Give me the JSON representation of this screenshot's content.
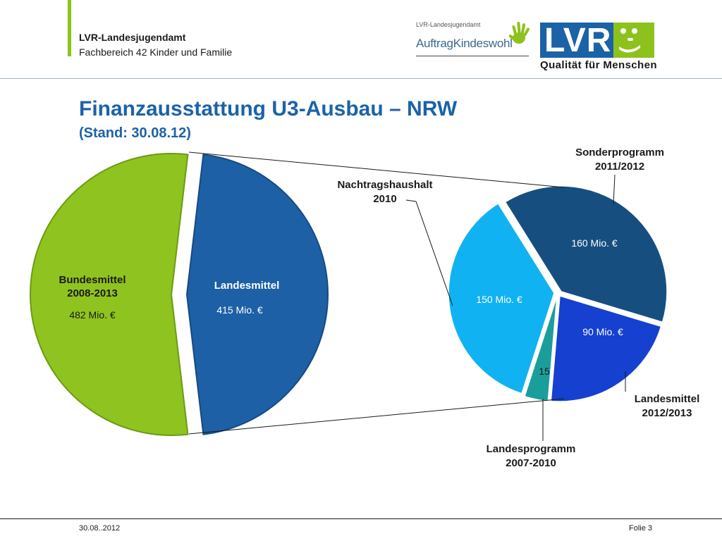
{
  "header": {
    "org_name": "LVR-Landesjugendamt",
    "org_unit": "Fachbereich 42 Kinder und Familie"
  },
  "logos": {
    "awk_org": "LVR-Landesjugendamt",
    "awk_name": "AuftragKindeswohl",
    "lvr_letters": "LVR",
    "lvr_tagline": "Qualität für Menschen"
  },
  "slide": {
    "title": "Finanzausstattung U3-Ausbau – NRW",
    "subtitle": "(Stand: 30.08.12)"
  },
  "footer": {
    "date": "30.08..2012",
    "page": "Folie 3"
  },
  "colors": {
    "title_blue": "#1b62a9",
    "bund_green": "#8fc31f",
    "land_blue": "#1d60a6",
    "sonder_navy": "#174e80",
    "land1213_blue": "#1640d0",
    "landes0710_teal": "#1a9e9b",
    "nachtrag_cyan": "#11b2f2"
  },
  "chart_data": [
    {
      "type": "pie",
      "slices": [
        {
          "label_lines": [
            "Bundesmittel",
            "2008-2013"
          ],
          "value_label": "482 Mio. €",
          "value": 482,
          "color": "#8fc31f"
        },
        {
          "label_lines": [
            "Landesmittel"
          ],
          "value_label": "415 Mio. €",
          "value": 415,
          "color": "#1d60a6"
        }
      ]
    },
    {
      "type": "pie",
      "breakdown_of": "Landesmittel",
      "slices": [
        {
          "label_lines": [
            "Sonderprogramm",
            "2011/2012"
          ],
          "value_label": "160 Mio. €",
          "value": 160,
          "color": "#174e80"
        },
        {
          "label_lines": [
            "Landesmittel",
            "2012/2013"
          ],
          "value_label": "90 Mio. €",
          "value": 90,
          "color": "#1640d0"
        },
        {
          "label_lines": [
            "Landesprogramm",
            "2007-2010"
          ],
          "value_label": "15",
          "value": 15,
          "color": "#1a9e9b"
        },
        {
          "label_lines": [
            "Nachtragshaushalt",
            "2010"
          ],
          "value_label": "150 Mio. €",
          "value": 150,
          "color": "#11b2f2"
        }
      ]
    }
  ]
}
